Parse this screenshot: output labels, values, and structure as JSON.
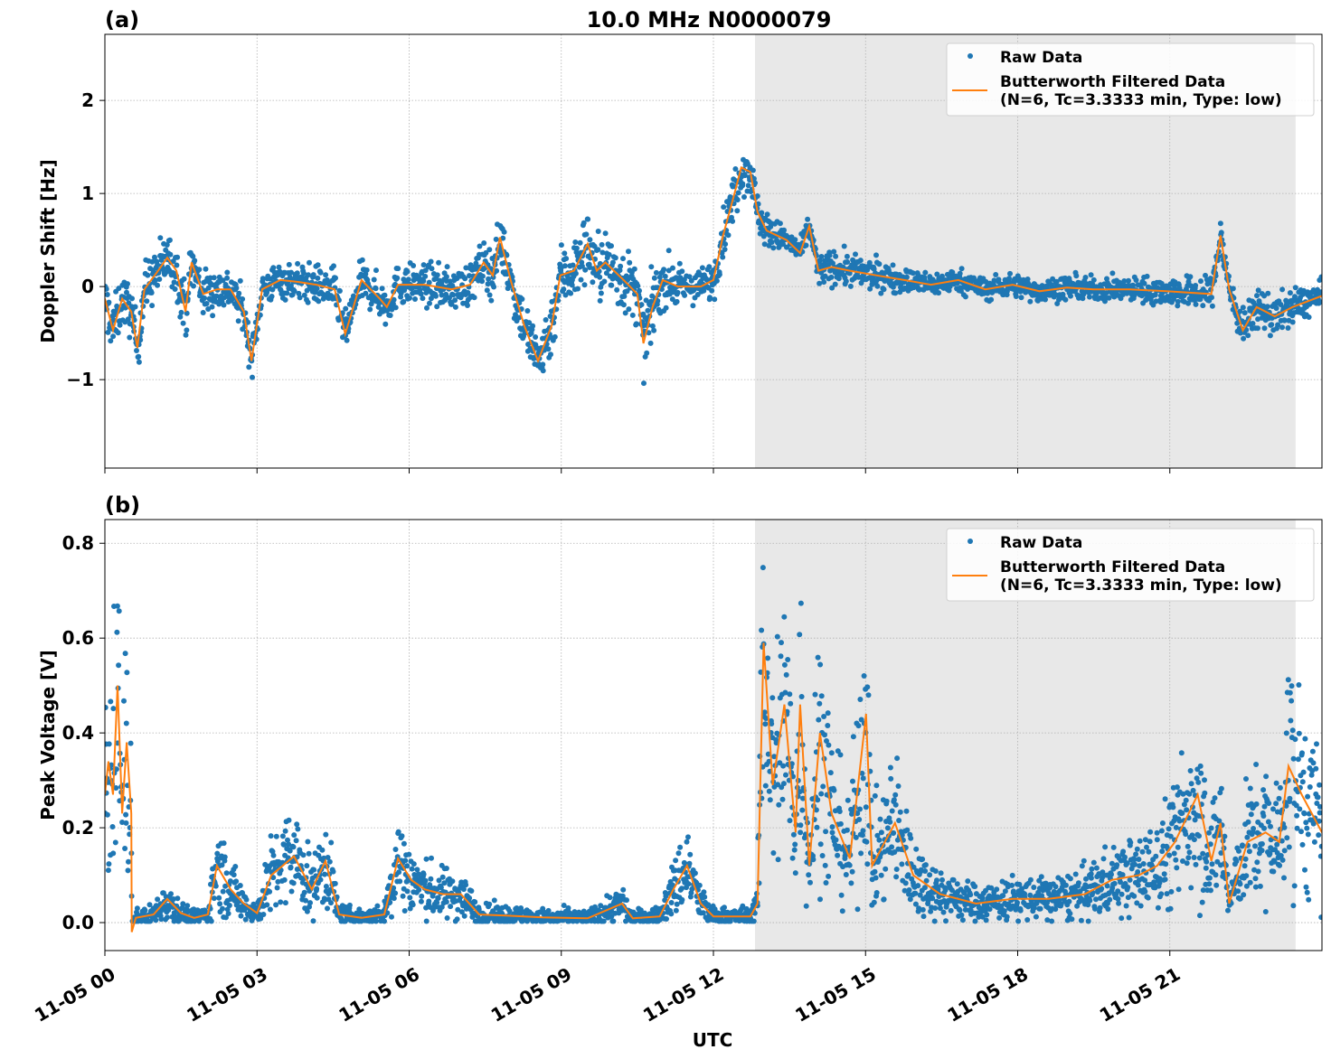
{
  "chart_data": {
    "title": "10.0 MHz N0000079",
    "xlabel": "UTC",
    "x_unit": "hours after 11-05 00 UTC",
    "xlim": [
      0,
      24
    ],
    "x_ticks": [
      0,
      3,
      6,
      9,
      12,
      15,
      18,
      21
    ],
    "x_tick_labels": [
      "11-05 00",
      "11-05 03",
      "11-05 06",
      "11-05 09",
      "11-05 12",
      "11-05 15",
      "11-05 18",
      "11-05 21"
    ],
    "shaded_interval": [
      12.82,
      23.48
    ],
    "grid": true,
    "colors": {
      "raw": "#1f77b4",
      "filtered": "#ff7f0e",
      "shade": "#e8e8e8"
    },
    "legend": {
      "placement": "top-right",
      "entries": [
        "Raw Data",
        "Butterworth Filtered Data",
        "(N=6, Tc=3.3333 min, Type: low)"
      ]
    },
    "panels": [
      {
        "label": "(a)",
        "type": "scatter+line",
        "ylabel": "Doppler Shift [Hz]",
        "ylim": [
          -1.95,
          2.71
        ],
        "y_ticks": [
          -1,
          0,
          1,
          2
        ],
        "y_tick_labels": [
          "−1",
          "0",
          "1",
          "2"
        ],
        "filtered": [
          [
            0.0,
            -0.13
          ],
          [
            0.16,
            -0.47
          ],
          [
            0.34,
            -0.13
          ],
          [
            0.52,
            -0.27
          ],
          [
            0.64,
            -0.66
          ],
          [
            0.78,
            -0.03
          ],
          [
            1.05,
            0.17
          ],
          [
            1.23,
            0.31
          ],
          [
            1.41,
            0.17
          ],
          [
            1.59,
            -0.27
          ],
          [
            1.71,
            0.26
          ],
          [
            1.94,
            -0.08
          ],
          [
            2.21,
            -0.03
          ],
          [
            2.48,
            -0.03
          ],
          [
            2.74,
            -0.27
          ],
          [
            2.89,
            -0.8
          ],
          [
            3.1,
            -0.03
          ],
          [
            3.46,
            0.07
          ],
          [
            3.81,
            0.05
          ],
          [
            4.17,
            0.02
          ],
          [
            4.53,
            -0.03
          ],
          [
            4.74,
            -0.51
          ],
          [
            5.06,
            0.07
          ],
          [
            5.42,
            -0.13
          ],
          [
            5.56,
            -0.22
          ],
          [
            5.78,
            0.02
          ],
          [
            6.31,
            0.02
          ],
          [
            6.84,
            -0.03
          ],
          [
            7.2,
            0.02
          ],
          [
            7.47,
            0.26
          ],
          [
            7.65,
            0.12
          ],
          [
            7.79,
            0.53
          ],
          [
            8.0,
            0.07
          ],
          [
            8.27,
            -0.42
          ],
          [
            8.54,
            -0.8
          ],
          [
            8.81,
            -0.42
          ],
          [
            8.98,
            0.12
          ],
          [
            9.25,
            0.17
          ],
          [
            9.52,
            0.46
          ],
          [
            9.7,
            0.17
          ],
          [
            9.87,
            0.26
          ],
          [
            10.23,
            0.07
          ],
          [
            10.5,
            -0.08
          ],
          [
            10.62,
            -0.61
          ],
          [
            10.8,
            -0.22
          ],
          [
            11.0,
            0.07
          ],
          [
            11.3,
            0.0
          ],
          [
            11.75,
            0.0
          ],
          [
            12.0,
            0.07
          ],
          [
            12.19,
            0.55
          ],
          [
            12.41,
            0.99
          ],
          [
            12.55,
            1.28
          ],
          [
            12.73,
            1.23
          ],
          [
            12.87,
            0.8
          ],
          [
            13.05,
            0.6
          ],
          [
            13.44,
            0.5
          ],
          [
            13.71,
            0.36
          ],
          [
            13.89,
            0.65
          ],
          [
            14.07,
            0.17
          ],
          [
            14.33,
            0.21
          ],
          [
            14.69,
            0.17
          ],
          [
            15.22,
            0.12
          ],
          [
            15.76,
            0.07
          ],
          [
            16.29,
            0.02
          ],
          [
            16.83,
            0.07
          ],
          [
            17.36,
            -0.03
          ],
          [
            17.9,
            0.02
          ],
          [
            18.43,
            -0.05
          ],
          [
            18.97,
            -0.01
          ],
          [
            19.5,
            -0.03
          ],
          [
            20.21,
            -0.03
          ],
          [
            20.93,
            -0.05
          ],
          [
            21.82,
            -0.08
          ],
          [
            22.0,
            0.55
          ],
          [
            22.17,
            -0.03
          ],
          [
            22.44,
            -0.47
          ],
          [
            22.71,
            -0.22
          ],
          [
            23.07,
            -0.32
          ],
          [
            23.42,
            -0.22
          ],
          [
            24.0,
            -0.1
          ]
        ],
        "raw_spread": [
          [
            0,
            0.45
          ],
          [
            1.5,
            0.45
          ],
          [
            3,
            0.3
          ],
          [
            4.5,
            0.35
          ],
          [
            7,
            0.35
          ],
          [
            8,
            0.45
          ],
          [
            9.5,
            0.6
          ],
          [
            10.8,
            0.55
          ],
          [
            11.5,
            0.25
          ],
          [
            12.5,
            0.45
          ],
          [
            13.5,
            0.2
          ],
          [
            14.5,
            0.3
          ],
          [
            16,
            0.2
          ],
          [
            20,
            0.2
          ],
          [
            22,
            0.3
          ],
          [
            23,
            0.35
          ],
          [
            24,
            0.25
          ]
        ]
      },
      {
        "label": "(b)",
        "type": "scatter+line",
        "ylabel": "Peak Voltage [V]",
        "ylim": [
          -0.059,
          0.85
        ],
        "y_ticks": [
          0.0,
          0.2,
          0.4,
          0.6,
          0.8
        ],
        "y_tick_labels": [
          "0.0",
          "0.2",
          "0.4",
          "0.6",
          "0.8"
        ],
        "filtered": [
          [
            0.0,
            0.27
          ],
          [
            0.07,
            0.34
          ],
          [
            0.16,
            0.27
          ],
          [
            0.25,
            0.5
          ],
          [
            0.34,
            0.23
          ],
          [
            0.43,
            0.38
          ],
          [
            0.52,
            0.23
          ],
          [
            0.53,
            -0.02
          ],
          [
            0.61,
            0.01
          ],
          [
            0.96,
            0.017
          ],
          [
            1.23,
            0.05
          ],
          [
            1.5,
            0.02
          ],
          [
            1.76,
            0.01
          ],
          [
            2.03,
            0.017
          ],
          [
            2.21,
            0.12
          ],
          [
            2.48,
            0.07
          ],
          [
            2.74,
            0.04
          ],
          [
            3.0,
            0.02
          ],
          [
            3.28,
            0.1
          ],
          [
            3.73,
            0.14
          ],
          [
            4.08,
            0.07
          ],
          [
            4.35,
            0.13
          ],
          [
            4.62,
            0.017
          ],
          [
            5.06,
            0.01
          ],
          [
            5.51,
            0.017
          ],
          [
            5.78,
            0.135
          ],
          [
            6.04,
            0.09
          ],
          [
            6.31,
            0.07
          ],
          [
            6.67,
            0.06
          ],
          [
            7.02,
            0.06
          ],
          [
            7.38,
            0.017
          ],
          [
            7.91,
            0.015
          ],
          [
            8.63,
            0.011
          ],
          [
            9.52,
            0.009
          ],
          [
            10.2,
            0.04
          ],
          [
            10.41,
            0.009
          ],
          [
            10.94,
            0.013
          ],
          [
            11.21,
            0.07
          ],
          [
            11.48,
            0.12
          ],
          [
            11.75,
            0.04
          ],
          [
            12.0,
            0.013
          ],
          [
            12.73,
            0.013
          ],
          [
            12.87,
            0.04
          ],
          [
            12.99,
            0.59
          ],
          [
            13.17,
            0.29
          ],
          [
            13.4,
            0.46
          ],
          [
            13.62,
            0.19
          ],
          [
            13.71,
            0.46
          ],
          [
            13.89,
            0.12
          ],
          [
            14.1,
            0.4
          ],
          [
            14.33,
            0.23
          ],
          [
            14.69,
            0.135
          ],
          [
            15.01,
            0.44
          ],
          [
            15.13,
            0.12
          ],
          [
            15.58,
            0.21
          ],
          [
            15.94,
            0.1
          ],
          [
            16.47,
            0.06
          ],
          [
            17.18,
            0.04
          ],
          [
            17.9,
            0.05
          ],
          [
            18.61,
            0.05
          ],
          [
            19.32,
            0.06
          ],
          [
            19.86,
            0.09
          ],
          [
            20.39,
            0.1
          ],
          [
            20.75,
            0.12
          ],
          [
            21.1,
            0.17
          ],
          [
            21.55,
            0.27
          ],
          [
            21.82,
            0.13
          ],
          [
            22.0,
            0.21
          ],
          [
            22.17,
            0.04
          ],
          [
            22.53,
            0.17
          ],
          [
            22.89,
            0.19
          ],
          [
            23.16,
            0.17
          ],
          [
            23.34,
            0.33
          ],
          [
            23.6,
            0.27
          ],
          [
            24.0,
            0.19
          ]
        ]
      }
    ]
  }
}
